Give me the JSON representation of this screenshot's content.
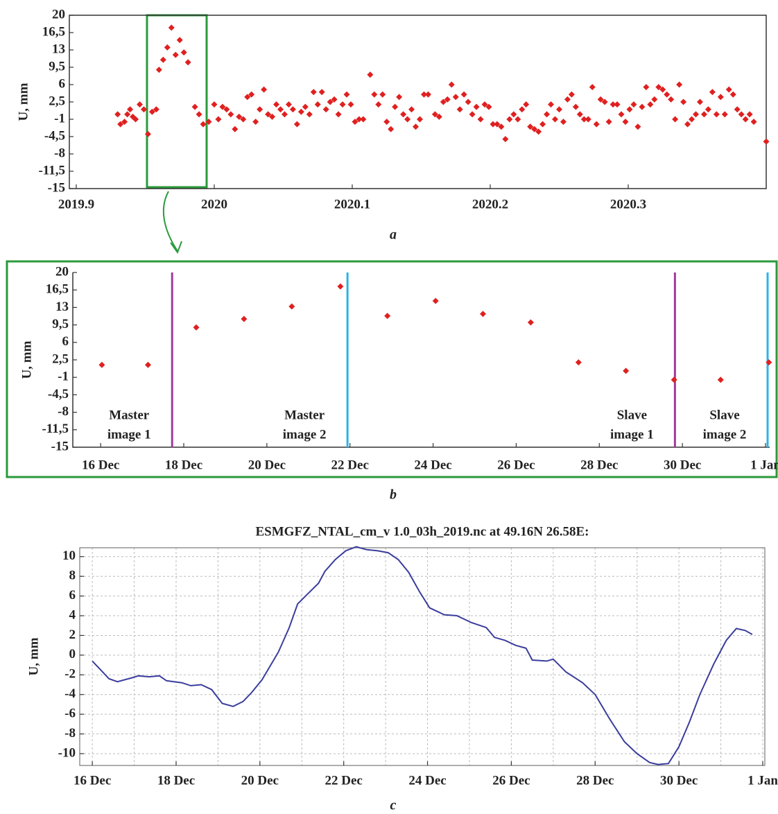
{
  "chart_data": [
    {
      "type": "scatter",
      "caption": "a",
      "ylabel": "U, mm",
      "color": "#e02020",
      "xlim": [
        2019.895,
        2020.4
      ],
      "ylim": [
        -15,
        20
      ],
      "xticks": [
        2019.9,
        2020,
        2020.1,
        2020.2,
        2020.3
      ],
      "yticks": [
        20,
        {
          "value": 16.5,
          "label": "16,5"
        },
        13,
        {
          "value": 9.5,
          "label": "9,5"
        },
        6,
        {
          "value": 2.5,
          "label": "2,5"
        },
        -1,
        {
          "value": -4.5,
          "label": "-4,5"
        },
        -8,
        {
          "value": -11.5,
          "label": "-11,5"
        },
        -15
      ],
      "x": [
        2019.93,
        2019.932,
        2019.935,
        2019.937,
        2019.939,
        2019.941,
        2019.943,
        2019.946,
        2019.949,
        2019.952,
        2019.955,
        2019.958,
        2019.96,
        2019.963,
        2019.966,
        2019.969,
        2019.972,
        2019.975,
        2019.978,
        2019.981,
        2019.986,
        2019.989,
        2019.992,
        2019.996,
        2020.0,
        2020.003,
        2020.006,
        2020.009,
        2020.012,
        2020.015,
        2020.018,
        2020.021,
        2020.024,
        2020.027,
        2020.03,
        2020.033,
        2020.036,
        2020.039,
        2020.042,
        2020.045,
        2020.048,
        2020.051,
        2020.054,
        2020.057,
        2020.06,
        2020.063,
        2020.066,
        2020.069,
        2020.072,
        2020.075,
        2020.078,
        2020.081,
        2020.084,
        2020.087,
        2020.09,
        2020.093,
        2020.096,
        2020.099,
        2020.102,
        2020.105,
        2020.108,
        2020.113,
        2020.116,
        2020.119,
        2020.122,
        2020.125,
        2020.128,
        2020.131,
        2020.134,
        2020.137,
        2020.14,
        2020.143,
        2020.146,
        2020.149,
        2020.152,
        2020.155,
        2020.16,
        2020.163,
        2020.166,
        2020.169,
        2020.172,
        2020.175,
        2020.178,
        2020.181,
        2020.184,
        2020.187,
        2020.19,
        2020.193,
        2020.196,
        2020.199,
        2020.202,
        2020.205,
        2020.208,
        2020.211,
        2020.214,
        2020.217,
        2020.22,
        2020.223,
        2020.226,
        2020.229,
        2020.232,
        2020.235,
        2020.238,
        2020.241,
        2020.244,
        2020.247,
        2020.25,
        2020.253,
        2020.256,
        2020.259,
        2020.262,
        2020.265,
        2020.268,
        2020.271,
        2020.274,
        2020.277,
        2020.28,
        2020.283,
        2020.286,
        2020.289,
        2020.292,
        2020.295,
        2020.298,
        2020.301,
        2020.304,
        2020.307,
        2020.31,
        2020.313,
        2020.316,
        2020.319,
        2020.322,
        2020.325,
        2020.328,
        2020.331,
        2020.334,
        2020.337,
        2020.34,
        2020.343,
        2020.346,
        2020.349,
        2020.352,
        2020.355,
        2020.358,
        2020.361,
        2020.364,
        2020.367,
        2020.37,
        2020.373,
        2020.376,
        2020.379,
        2020.382,
        2020.385,
        2020.388,
        2020.391,
        2020.4
      ],
      "y": [
        0,
        -2,
        -1.5,
        0,
        1,
        -0.5,
        -1,
        2,
        1,
        -4,
        0.5,
        1,
        9,
        11,
        13.5,
        17.5,
        12,
        15,
        12.5,
        10.5,
        1.5,
        0,
        -2,
        -1.5,
        2,
        -1,
        1.5,
        1,
        0,
        -3,
        -0.5,
        -1,
        3.5,
        4,
        -1.5,
        1,
        5,
        0,
        -0.5,
        2,
        1,
        0,
        2,
        1,
        -2,
        0.5,
        1.5,
        0,
        4.5,
        2,
        4.5,
        1,
        2.5,
        3,
        0,
        2,
        4,
        2,
        -1.5,
        -1,
        -1,
        8,
        4,
        2,
        4,
        -1.5,
        -3,
        1.5,
        3.5,
        0,
        -1,
        1,
        -2.5,
        -1,
        4,
        4,
        0,
        -0.5,
        2.5,
        3,
        6,
        3.5,
        1,
        4,
        2.5,
        0,
        1.5,
        -1,
        2,
        1.5,
        -2,
        -2,
        -2.5,
        -5,
        -1,
        0,
        -1,
        1,
        2,
        -2.5,
        -3,
        -3.5,
        -2,
        0,
        2,
        -1,
        1,
        -1.5,
        3,
        4,
        1.5,
        0,
        -1,
        -1,
        5.5,
        -2,
        3,
        2.5,
        -1.5,
        2,
        2,
        0,
        -1.5,
        1,
        2,
        -2.5,
        1.5,
        5.5,
        2,
        3,
        5.5,
        5,
        4,
        3,
        -1,
        6,
        2.5,
        -2,
        -1,
        0,
        2.5,
        0,
        1,
        4.5,
        0,
        3.5,
        0,
        5,
        4,
        1,
        0,
        -1,
        0,
        -1.5,
        -5.5
      ]
    },
    {
      "type": "scatter",
      "caption": "b",
      "ylabel": "U, mm",
      "color": "#e02020",
      "xlim": [
        15.33,
        32.1
      ],
      "ylim": [
        -15,
        20
      ],
      "xticks": [
        {
          "value": 16,
          "label": "16 Dec"
        },
        {
          "value": 18,
          "label": "18 Dec"
        },
        {
          "value": 20,
          "label": "20 Dec"
        },
        {
          "value": 22,
          "label": "22 Dec"
        },
        {
          "value": 24,
          "label": "24 Dec"
        },
        {
          "value": 26,
          "label": "26 Dec"
        },
        {
          "value": 28,
          "label": "28 Dec"
        },
        {
          "value": 30,
          "label": "30 Dec"
        },
        {
          "value": 32,
          "label": "1 Jan"
        }
      ],
      "yticks": [
        20,
        {
          "value": 16.5,
          "label": "16,5"
        },
        13,
        {
          "value": 9.5,
          "label": "9,5"
        },
        6,
        {
          "value": 2.5,
          "label": "2,5"
        },
        -1,
        {
          "value": -4.5,
          "label": "-4,5"
        },
        -8,
        {
          "value": -11.5,
          "label": "-11,5"
        },
        -15
      ],
      "x": [
        16.03,
        17.14,
        18.3,
        19.45,
        20.6,
        21.77,
        22.9,
        24.06,
        25.2,
        26.35,
        27.5,
        28.64,
        29.8,
        30.92,
        32.08
      ],
      "y": [
        1.5,
        1.5,
        9,
        10.7,
        13.2,
        17.2,
        11.3,
        14.3,
        11.7,
        10,
        2,
        0.3,
        -1.5,
        -1.5,
        2
      ],
      "vlines": [
        {
          "x": 17.72,
          "color": "#a03c9c",
          "label": [
            "Master",
            "image 1"
          ]
        },
        {
          "x": 21.94,
          "color": "#2ab4e4",
          "label": [
            "Master",
            "image 2"
          ]
        },
        {
          "x": 29.82,
          "color": "#a03c9c",
          "label": [
            "Slave",
            "image 1"
          ]
        },
        {
          "x": 32.05,
          "color": "#2ab4e4",
          "label": [
            "Slave",
            "image 2"
          ]
        }
      ]
    },
    {
      "type": "line",
      "caption": "c",
      "title": "ESMGFZ_NTAL_cm_v 1.0_03h_2019.nc at 49.16N 26.58E:",
      "ylabel": "U, mm",
      "color": "#3a3d9c",
      "grid": true,
      "xlim": [
        15.7,
        32.05
      ],
      "ylim": [
        -11.2,
        10.9
      ],
      "xticks": [
        {
          "value": 16,
          "label": "16 Dec"
        },
        {
          "value": 18,
          "label": "18 Dec"
        },
        {
          "value": 20,
          "label": "20 Dec"
        },
        {
          "value": 22,
          "label": "22 Dec"
        },
        {
          "value": 24,
          "label": "24 Dec"
        },
        {
          "value": 26,
          "label": "26 Dec"
        },
        {
          "value": 28,
          "label": "28 Dec"
        },
        {
          "value": 30,
          "label": "30 Dec"
        },
        {
          "value": 32,
          "label": "1 Jan"
        }
      ],
      "xminor": [
        17,
        19,
        21,
        23,
        25,
        27,
        29,
        31
      ],
      "yticks": [
        10,
        8,
        6,
        4,
        2,
        0,
        -2,
        -4,
        -6,
        -8,
        -10
      ],
      "x": [
        16.0,
        16.2,
        16.4,
        16.6,
        16.95,
        17.1,
        17.36,
        17.6,
        17.77,
        18.14,
        18.35,
        18.6,
        18.85,
        19.1,
        19.36,
        19.6,
        19.8,
        20.05,
        20.44,
        20.7,
        20.9,
        21.16,
        21.4,
        21.55,
        21.8,
        22.05,
        22.3,
        22.55,
        22.8,
        23.06,
        23.3,
        23.55,
        23.8,
        24.05,
        24.4,
        24.7,
        25.05,
        25.4,
        25.6,
        25.85,
        26.1,
        26.35,
        26.5,
        26.85,
        27.0,
        27.3,
        27.7,
        28.0,
        28.35,
        28.7,
        29.0,
        29.3,
        29.5,
        29.75,
        30.0,
        30.25,
        30.5,
        30.83,
        31.13,
        31.37,
        31.58,
        31.75
      ],
      "y": [
        -0.6,
        -1.5,
        -2.4,
        -2.7,
        -2.3,
        -2.1,
        -2.2,
        -2.1,
        -2.6,
        -2.8,
        -3.1,
        -3.0,
        -3.5,
        -4.9,
        -5.2,
        -4.7,
        -3.8,
        -2.5,
        0.3,
        2.8,
        5.2,
        6.3,
        7.3,
        8.5,
        9.7,
        10.6,
        11.0,
        10.7,
        10.6,
        10.4,
        9.7,
        8.4,
        6.5,
        4.8,
        4.1,
        4.0,
        3.3,
        2.8,
        1.8,
        1.5,
        1.0,
        0.7,
        -0.5,
        -0.6,
        -0.4,
        -1.7,
        -2.8,
        -4.0,
        -6.5,
        -8.8,
        -10.0,
        -10.9,
        -11.1,
        -11.0,
        -9.3,
        -6.8,
        -4.0,
        -0.9,
        1.5,
        2.7,
        2.5,
        2.1
      ]
    }
  ]
}
